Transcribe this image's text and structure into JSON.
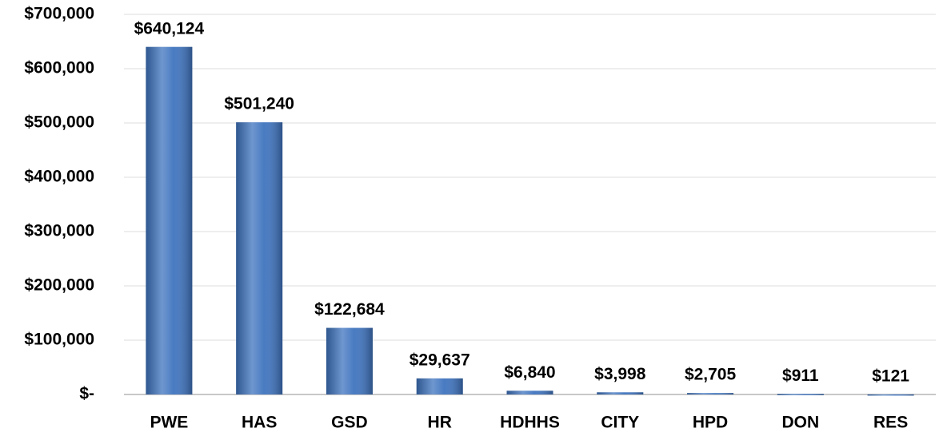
{
  "chart_data": {
    "type": "bar",
    "categories": [
      "PWE",
      "HAS",
      "GSD",
      "HR",
      "HDHHS",
      "CITY",
      "HPD",
      "DON",
      "RES"
    ],
    "values": [
      640124,
      501240,
      122684,
      29637,
      6840,
      3998,
      2705,
      911,
      121
    ],
    "value_labels": [
      "$640,124",
      "$501,240",
      "$122,684",
      "$29,637",
      "$6,840",
      "$3,998",
      "$2,705",
      "$911",
      "$121"
    ],
    "color": "#3f74bf",
    "ylim": [
      0,
      700000
    ],
    "yticks": [
      {
        "value": 0,
        "label": "$-"
      },
      {
        "value": 100000,
        "label": "$100,000"
      },
      {
        "value": 200000,
        "label": "$200,000"
      },
      {
        "value": 300000,
        "label": "$300,000"
      },
      {
        "value": 400000,
        "label": "$400,000"
      },
      {
        "value": 500000,
        "label": "$500,000"
      },
      {
        "value": 600000,
        "label": "$600,000"
      },
      {
        "value": 700000,
        "label": "$700,000"
      }
    ],
    "grid": true
  }
}
